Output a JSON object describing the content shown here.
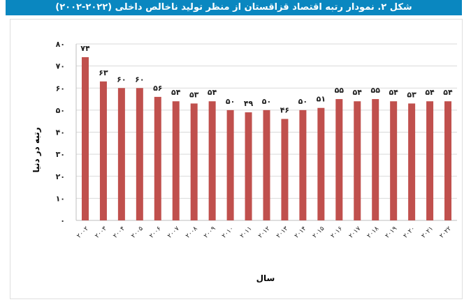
{
  "figure": {
    "title": "شکل ۲. نمودار رتبه اقتصاد قزاقستان از منظر تولید ناخالص داخلی (۲۰۲۲-۲۰۰۲)"
  },
  "chart_data": {
    "type": "bar",
    "title": "شکل ۲. نمودار رتبه اقتصاد قزاقستان از منظر تولید ناخالص داخلی (۲۰۲۲-۲۰۰۲)",
    "xlabel": "سال",
    "ylabel": "رتبه در دنیا",
    "categories": [
      "۲۰۰۲",
      "۲۰۰۳",
      "۲۰۰۴",
      "۲۰۰۵",
      "۲۰۰۶",
      "۲۰۰۷",
      "۲۰۰۸",
      "۲۰۰۹",
      "۲۰۱۰",
      "۲۰۱۱",
      "۲۰۱۲",
      "۲۰۱۳",
      "۲۰۱۴",
      "۲۰۱۵",
      "۲۰۱۶",
      "۲۰۱۷",
      "۲۰۱۸",
      "۲۰۱۹",
      "۲۰۲۰",
      "۲۰۲۱",
      "۲۰۲۲"
    ],
    "values": [
      74,
      63,
      60,
      60,
      56,
      54,
      53,
      54,
      50,
      49,
      50,
      46,
      50,
      51,
      55,
      54,
      55,
      54,
      53,
      54,
      54
    ],
    "value_labels": [
      "۷۴",
      "۶۳",
      "۶۰",
      "۶۰",
      "۵۶",
      "۵۴",
      "۵۳",
      "۵۴",
      "۵۰",
      "۴۹",
      "۵۰",
      "۴۶",
      "۵۰",
      "۵۱",
      "۵۵",
      "۵۴",
      "۵۵",
      "۵۴",
      "۵۳",
      "۵۴",
      "۵۴"
    ],
    "ylim": [
      0,
      80
    ],
    "yticks": [
      0,
      10,
      20,
      30,
      40,
      50,
      60,
      70,
      80
    ],
    "ytick_labels": [
      "۰",
      "۱۰",
      "۲۰",
      "۳۰",
      "۴۰",
      "۵۰",
      "۶۰",
      "۷۰",
      "۸۰"
    ],
    "grid": true,
    "legend": null,
    "colors": {
      "bar": "#c0504d",
      "title_bar": "#0a87c0",
      "grid": "#d9d9d9"
    }
  }
}
